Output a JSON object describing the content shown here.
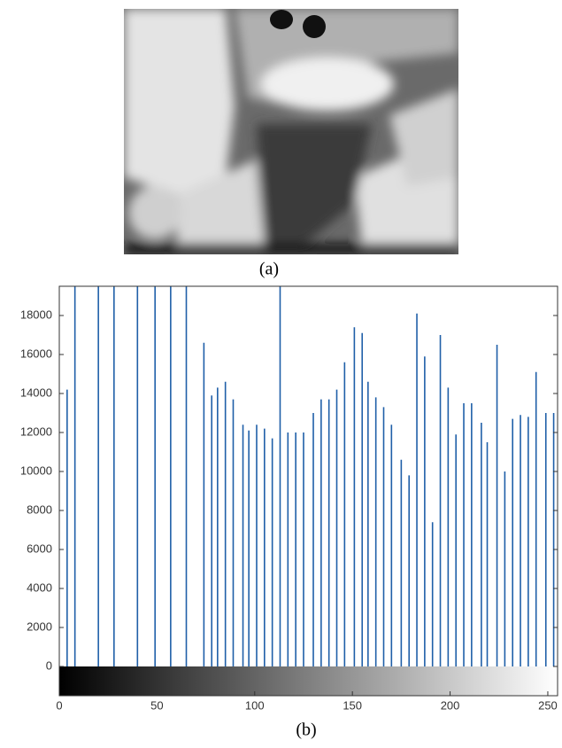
{
  "figure": {
    "image_caption": "(a)",
    "chart_caption": "(b)"
  },
  "chart_data": {
    "type": "stem",
    "color": "#1f5fa8",
    "colorbar": true,
    "x": [
      4,
      8,
      20,
      28,
      40,
      49,
      57,
      65,
      74,
      78,
      81,
      85,
      89,
      94,
      97,
      101,
      105,
      109,
      113,
      117,
      121,
      125,
      130,
      134,
      138,
      142,
      146,
      151,
      155,
      158,
      162,
      166,
      170,
      175,
      179,
      183,
      187,
      191,
      195,
      199,
      203,
      207,
      211,
      216,
      219,
      224,
      228,
      232,
      236,
      240,
      244,
      249,
      253
    ],
    "values": [
      14200,
      19500,
      19500,
      19500,
      19500,
      19500,
      19500,
      19500,
      16600,
      13900,
      14300,
      14600,
      13700,
      12400,
      12100,
      12400,
      12200,
      11700,
      19500,
      12000,
      12000,
      12000,
      13000,
      13700,
      13700,
      14200,
      15600,
      17400,
      17100,
      14600,
      13800,
      13300,
      12400,
      10600,
      9800,
      18100,
      15900,
      7400,
      17000,
      14300,
      11900,
      13500,
      13500,
      12500,
      11500,
      16500,
      10000,
      12700,
      12900,
      12800,
      15100,
      13000,
      13000
    ],
    "xlim": [
      0,
      255
    ],
    "ylim": [
      -1500,
      19500
    ],
    "xticks": [
      0,
      50,
      100,
      150,
      200,
      250
    ],
    "yticks": [
      0,
      2000,
      4000,
      6000,
      8000,
      10000,
      12000,
      14000,
      16000,
      18000
    ]
  }
}
